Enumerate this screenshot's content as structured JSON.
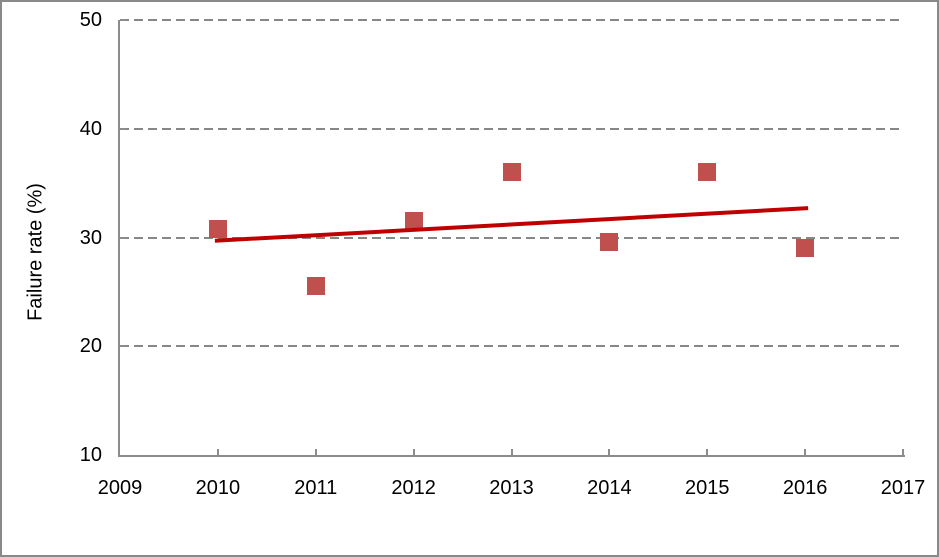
{
  "chart_data": {
    "type": "scatter",
    "title": "",
    "xlabel": "",
    "ylabel": "Failure rate (%)",
    "xlim": [
      2009,
      2017
    ],
    "ylim": [
      10,
      50
    ],
    "x_ticks": [
      "2009",
      "2010",
      "2011",
      "2012",
      "2013",
      "2014",
      "2015",
      "2016",
      "2017"
    ],
    "x_tick_values": [
      2009,
      2010,
      2011,
      2012,
      2013,
      2014,
      2015,
      2016,
      2017
    ],
    "y_ticks": [
      "10",
      "20",
      "30",
      "40",
      "50"
    ],
    "y_tick_values": [
      10,
      20,
      30,
      40,
      50
    ],
    "grid": {
      "axis": "y",
      "style": "dashed",
      "values": [
        20,
        30,
        40,
        50
      ],
      "color": "#878787"
    },
    "legend": {
      "visible": false
    },
    "series": [
      {
        "name": "failure-rate-by-year",
        "type": "scatter",
        "marker": "square",
        "color": "#C0504D",
        "x": [
          2010,
          2011,
          2012,
          2013,
          2014,
          2015,
          2016
        ],
        "y": [
          30.8,
          25.5,
          31.5,
          36.0,
          29.6,
          36.0,
          29.0
        ]
      },
      {
        "name": "linear-trendline",
        "type": "line",
        "color": "#C00000",
        "stroke_width": 4,
        "x": [
          2010,
          2016
        ],
        "y": [
          29.7,
          32.7
        ]
      }
    ],
    "colors": {
      "axis": "#8C8C8C",
      "text": "#000000",
      "background": "#FFFFFF",
      "frame_border": "#898989"
    }
  }
}
